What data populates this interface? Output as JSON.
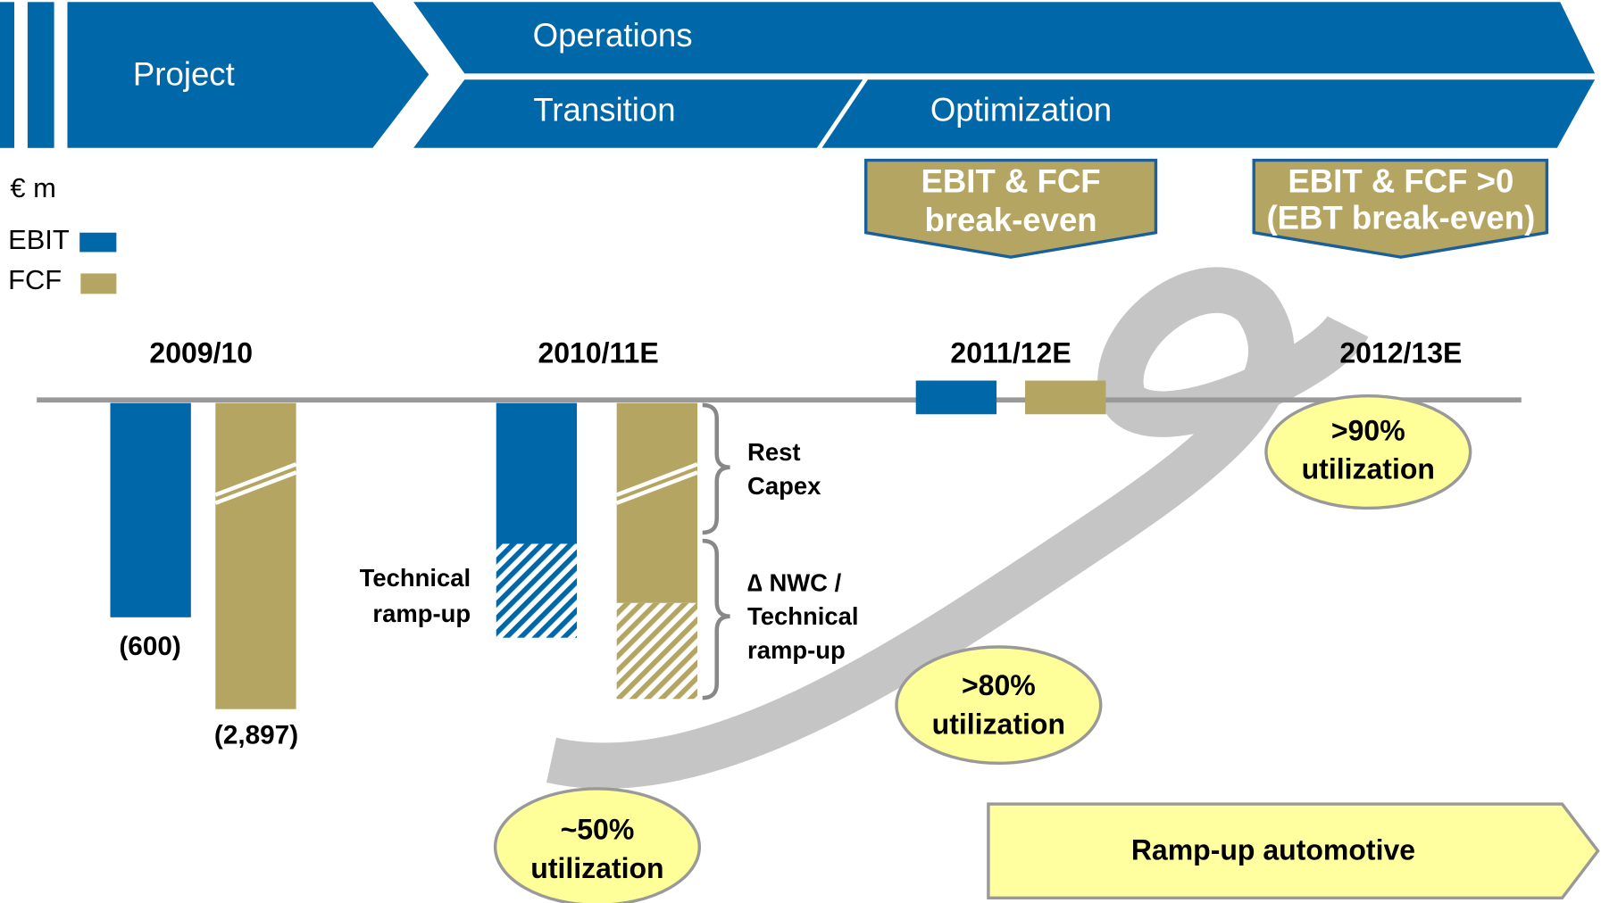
{
  "header": {
    "project": "Project",
    "operations": "Operations",
    "transition": "Transition",
    "optimization": "Optimization"
  },
  "milestones": [
    {
      "lines": [
        "EBIT & FCF",
        "break-even"
      ]
    },
    {
      "lines": [
        "EBIT & FCF >0",
        "(EBT break-even)"
      ]
    }
  ],
  "legend": {
    "unit": "€ m",
    "items": [
      "EBIT",
      "FCF"
    ]
  },
  "years": [
    "2009/10",
    "2010/11E",
    "2011/12E",
    "2012/13E"
  ],
  "value_labels": [
    "(600)",
    "(2,897)"
  ],
  "annotations": {
    "technical": [
      "Technical",
      "ramp-up"
    ],
    "rest_capex": [
      "Rest",
      "Capex"
    ],
    "nwc": [
      "∆ NWC /",
      "Technical",
      "ramp-up"
    ]
  },
  "utilization": [
    [
      "~50%",
      "utilization"
    ],
    [
      ">80%",
      "utilization"
    ],
    [
      ">90%",
      "utilization"
    ]
  ],
  "ramp_up": "Ramp-up automotive"
}
